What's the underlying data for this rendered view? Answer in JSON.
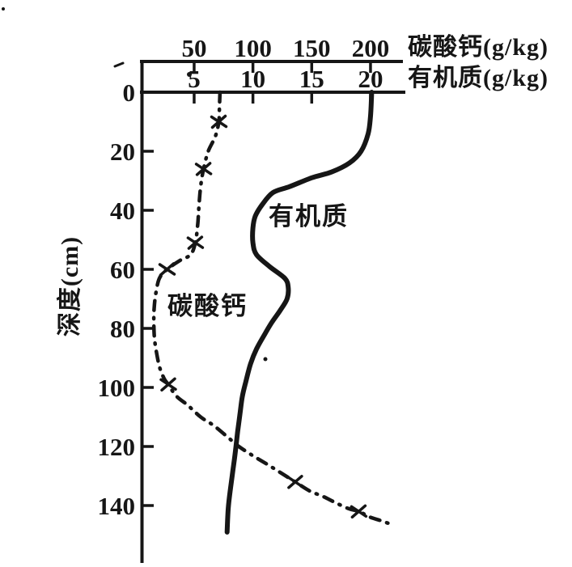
{
  "figure": {
    "description": "Scanned depth-profile chart of calcium carbonate and organic matter content in a soil profile",
    "background_color": "#ffffff",
    "ink_color": "#161616"
  },
  "axes": {
    "top_primary": {
      "title": "碳酸钙(g/kg)",
      "tick_values": [
        50,
        100,
        150,
        200
      ]
    },
    "top_secondary": {
      "title": "有机质(g/kg)",
      "tick_values": [
        5,
        10,
        15,
        20
      ]
    },
    "left": {
      "title": "深度(cm)",
      "tick_values": [
        0,
        20,
        40,
        60,
        80,
        100,
        120,
        140
      ]
    }
  },
  "curve_labels": {
    "organic": "有机质",
    "caco3": "碳酸钙"
  },
  "chart_data": {
    "type": "line",
    "orientation": "depth profile: y axis is depth in cm increasing downward, x axes on top",
    "title": "",
    "ylabel": "深度(cm)",
    "y_range": [
      0,
      160
    ],
    "grid": false,
    "legend": "inline labels next to curves",
    "x_axes": [
      {
        "id": "top_primary",
        "label": "碳酸钙(g/kg)",
        "ticks": [
          50,
          100,
          150,
          200
        ],
        "range": [
          0,
          230
        ]
      },
      {
        "id": "top_secondary",
        "label": "有机质(g/kg)",
        "ticks": [
          5,
          10,
          15,
          20
        ],
        "range": [
          0,
          23
        ]
      }
    ],
    "series": [
      {
        "name": "碳酸钙",
        "unit": "g/kg",
        "axis": "top_primary",
        "line_style": "dash-dot",
        "marker": "x",
        "points_depth_value": [
          [
            0,
            72
          ],
          [
            5,
            71.5
          ],
          [
            10,
            71
          ],
          [
            15,
            68
          ],
          [
            20,
            62
          ],
          [
            26,
            58
          ],
          [
            32,
            55.5
          ],
          [
            39,
            54
          ],
          [
            45,
            53
          ],
          [
            51,
            51
          ],
          [
            55,
            47
          ],
          [
            57,
            38
          ],
          [
            60,
            27
          ],
          [
            63,
            20.5
          ],
          [
            68,
            17.5
          ],
          [
            73,
            16.0
          ],
          [
            78,
            15.7
          ],
          [
            83,
            16.2
          ],
          [
            87,
            17.5
          ],
          [
            93,
            20.5
          ],
          [
            97,
            24.5
          ],
          [
            99,
            28
          ],
          [
            103,
            35
          ],
          [
            106,
            44.5
          ],
          [
            110,
            55.5
          ],
          [
            113,
            67
          ],
          [
            117,
            79
          ],
          [
            120,
            88
          ],
          [
            123,
            99.5
          ],
          [
            126,
            112
          ],
          [
            129,
            124
          ],
          [
            132,
            136
          ],
          [
            135,
            148
          ],
          [
            137,
            160
          ],
          [
            139,
            170
          ],
          [
            141,
            181
          ],
          [
            142,
            190
          ],
          [
            144,
            200
          ],
          [
            145,
            208
          ],
          [
            146,
            215
          ]
        ],
        "marker_points_depth_value": [
          [
            10,
            71
          ],
          [
            26,
            58
          ],
          [
            51,
            51
          ],
          [
            60,
            27
          ],
          [
            99,
            28
          ],
          [
            132,
            136
          ],
          [
            142,
            190
          ]
        ]
      },
      {
        "name": "有机质",
        "unit": "g/kg",
        "axis": "top_secondary",
        "line_style": "solid",
        "marker": "none",
        "points_depth_value": [
          [
            0,
            20.1
          ],
          [
            8,
            20.0
          ],
          [
            14,
            19.8
          ],
          [
            20,
            19.2
          ],
          [
            24,
            18.2
          ],
          [
            27,
            16.7
          ],
          [
            29,
            15.0
          ],
          [
            32,
            13.1
          ],
          [
            34,
            11.7
          ],
          [
            38,
            10.8
          ],
          [
            42,
            10.2
          ],
          [
            46,
            10.0
          ],
          [
            51,
            10.0
          ],
          [
            55,
            10.3
          ],
          [
            59,
            11.4
          ],
          [
            63,
            12.7
          ],
          [
            66,
            13.0
          ],
          [
            70,
            12.9
          ],
          [
            74,
            12.3
          ],
          [
            78,
            11.6
          ],
          [
            82,
            11.0
          ],
          [
            87,
            10.3
          ],
          [
            92,
            9.8
          ],
          [
            98,
            9.4
          ],
          [
            103,
            9.1
          ],
          [
            109,
            8.9
          ],
          [
            115,
            8.7
          ],
          [
            122,
            8.5
          ],
          [
            128,
            8.3
          ],
          [
            134,
            8.1
          ],
          [
            141,
            7.9
          ],
          [
            149,
            7.8
          ]
        ]
      }
    ]
  }
}
